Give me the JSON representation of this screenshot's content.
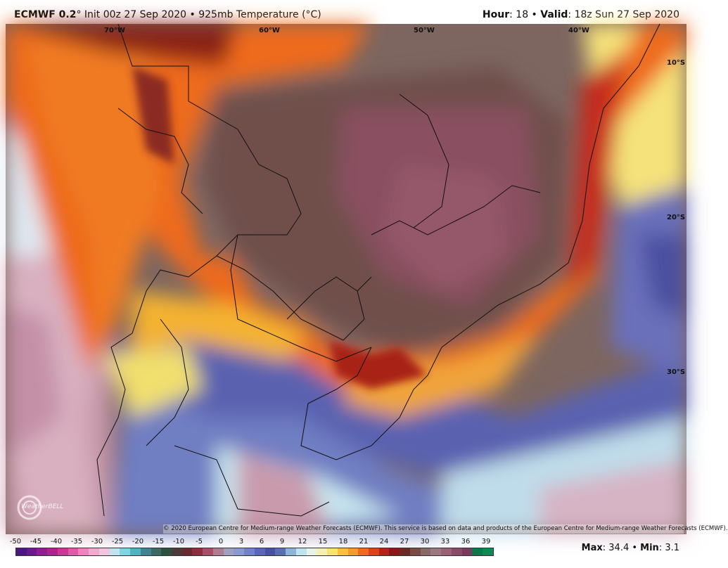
{
  "header": {
    "model": "ECMWF 0.2",
    "init": "° Init 00z 27 Sep 2020 • 925mb Temperature (°C)",
    "hour_label": "Hour",
    "hour_value": ": 18 • ",
    "valid_label": "Valid",
    "valid_value": ": 18z Sun 27 Sep 2020"
  },
  "map": {
    "lon_labels": [
      "70°W",
      "60°W",
      "50°W",
      "40°W"
    ],
    "lat_labels": [
      "10°S",
      "20°S",
      "30°S"
    ],
    "credit": "© 2020 European Centre for Medium-range Weather Forecasts (ECMWF). This service is based on data and products of the European Centre for Medium-range Weather Forecasts (ECMWF).",
    "logo_text": "WeatherBELL"
  },
  "colorbar": {
    "ticks": [
      "-50",
      "-45",
      "-40",
      "-35",
      "-30",
      "-25",
      "-20",
      "-15",
      "-10",
      "-5",
      "0",
      "3",
      "6",
      "9",
      "12",
      "15",
      "18",
      "21",
      "24",
      "27",
      "30",
      "33",
      "36",
      "39"
    ],
    "colors": [
      "#4b1782",
      "#6b1a8c",
      "#8e1f8e",
      "#b0238e",
      "#cf3594",
      "#e45aa8",
      "#ee83be",
      "#f3a8d0",
      "#f0c6dc",
      "#bfe6ee",
      "#7fd6de",
      "#4fb4bf",
      "#3f8490",
      "#3a6a63",
      "#2f4f3f",
      "#4d3a3a",
      "#6b2a32",
      "#8c3040",
      "#a5506a",
      "#b07c92",
      "#a0a0c0",
      "#8a9ad0",
      "#7083c8",
      "#5a67b8",
      "#4a52a0",
      "#5a6fae",
      "#8ab5d8",
      "#bfe3ee",
      "#e6f3e8",
      "#f5f0b0",
      "#f7e46a",
      "#f8c23a",
      "#f89a2a",
      "#f36a1e",
      "#e0401a",
      "#b8201a",
      "#8a1616",
      "#6a2a26",
      "#7a4a44",
      "#8a6a66",
      "#9a7a80",
      "#9a6078",
      "#8a4a6a",
      "#7a3a5e",
      "#0a7a4a",
      "#0b8a52"
    ]
  },
  "stats": {
    "max_label": "Max",
    "max_value": ": 34.4 • ",
    "min_label": "Min",
    "min_value": ": 3.1"
  }
}
